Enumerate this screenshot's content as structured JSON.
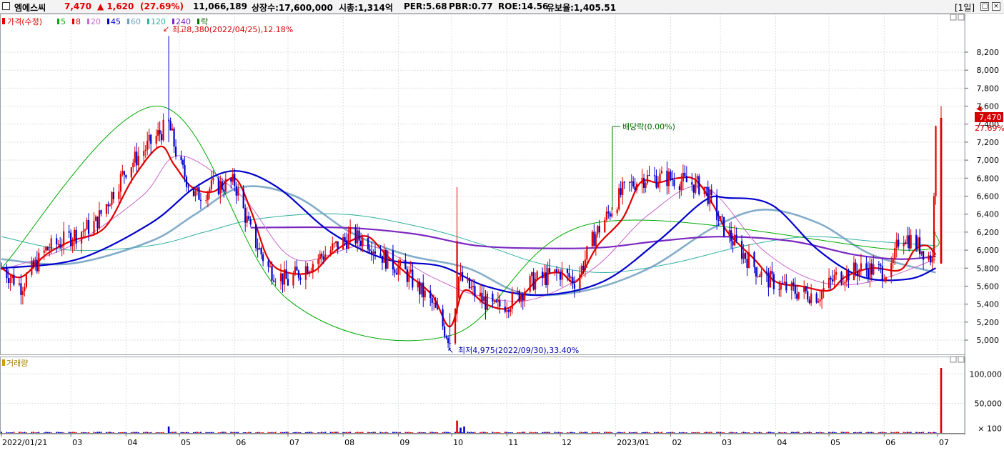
{
  "header": {
    "name": "엠에스씨",
    "price": "7,470",
    "change": "▲ 1,620",
    "change_pct": "(27.69%)",
    "volume": "11,066,189",
    "shares": "상장수:17,600,000",
    "market_cap": "시총:1,314억",
    "per": "PER:5.68",
    "pbr": "PBR:0.77",
    "roe": "ROE:14.56",
    "float_ratio": "유보율:1,405.51",
    "period": "[1일]",
    "colors": {
      "up": "#e00000",
      "down": "#0000cc",
      "text": "#000000"
    }
  },
  "legend": {
    "price_label": "가격(수정)",
    "ma": [
      {
        "label": "5",
        "color": "#00aa00"
      },
      {
        "label": "8",
        "color": "#e00000"
      },
      {
        "label": "20",
        "color": "#cc66cc"
      },
      {
        "label": "45",
        "color": "#0000cc"
      },
      {
        "label": "60",
        "color": "#6f9fc0"
      },
      {
        "label": "120",
        "color": "#30b0a0"
      },
      {
        "label": "240",
        "color": "#7a28c0"
      }
    ],
    "ex_label": "락",
    "volume_label": "거래량"
  },
  "annotations": {
    "high": "최고8,380(2022/04/25),12.18%",
    "low": "최저4,975(2022/09/30),33.40%",
    "dividend": "배당락(0.00%)"
  },
  "current_price_tag": {
    "price": "7,470",
    "pct": "27.69%"
  },
  "chart_data": {
    "type": "candlestick",
    "price_axis": {
      "ticks": [
        "8,200",
        "8,000",
        "7,800",
        "7,600",
        "7,400",
        "7,200",
        "7,000",
        "6,800",
        "6,600",
        "6,400",
        "6,200",
        "6,000",
        "5,800",
        "5,600",
        "5,400",
        "5,200",
        "5,000"
      ],
      "ylim": [
        4850,
        8400
      ]
    },
    "volume_axis": {
      "ticks": [
        "100,000",
        "50,000",
        "× 100"
      ],
      "ylim": [
        0,
        110000
      ]
    },
    "x_axis": {
      "labels": [
        "2022/01/21",
        "03",
        "04",
        "05",
        "06",
        "07",
        "08",
        "09",
        "10",
        "11",
        "12",
        "2023/01",
        "02",
        "03",
        "04",
        "05",
        "06",
        "07"
      ]
    },
    "ma_lines": [
      {
        "name": "5",
        "color": "#00aa00",
        "points": [
          [
            "2022/01/21",
            5800
          ],
          [
            "2022/04/20",
            7600
          ],
          [
            "2022/07/01",
            5450
          ],
          [
            "2022/09/30",
            5050
          ],
          [
            "2022/12/20",
            6300
          ],
          [
            "2023/06/12",
            6000
          ],
          [
            "2023/06/30",
            6200
          ]
        ]
      },
      {
        "name": "8",
        "color": "#e00000",
        "points": [
          [
            "2022/01/21",
            5800
          ],
          [
            "2022/02/01",
            5700
          ],
          [
            "2022/02/15",
            5950
          ],
          [
            "2022/03/01",
            6100
          ],
          [
            "2022/03/20",
            6250
          ],
          [
            "2022/04/05",
            6800
          ],
          [
            "2022/04/20",
            7150
          ],
          [
            "2022/04/28",
            6950
          ],
          [
            "2022/05/08",
            6700
          ],
          [
            "2022/05/20",
            6650
          ],
          [
            "2022/06/01",
            6800
          ],
          [
            "2022/06/10",
            6450
          ],
          [
            "2022/06/20",
            5900
          ],
          [
            "2022/07/01",
            5750
          ],
          [
            "2022/07/15",
            5760
          ],
          [
            "2022/07/25",
            5950
          ],
          [
            "2022/08/05",
            6100
          ],
          [
            "2022/08/15",
            6150
          ],
          [
            "2022/08/25",
            5950
          ],
          [
            "2022/09/05",
            5750
          ],
          [
            "2022/09/20",
            5500
          ],
          [
            "2022/09/30",
            5150
          ],
          [
            "2022/10/08",
            5550
          ],
          [
            "2022/10/20",
            5400
          ],
          [
            "2022/11/01",
            5350
          ],
          [
            "2022/11/10",
            5500
          ],
          [
            "2022/11/20",
            5700
          ],
          [
            "2022/12/01",
            5750
          ],
          [
            "2022/12/10",
            5650
          ],
          [
            "2022/12/22",
            6050
          ],
          [
            "2023/01/05",
            6350
          ],
          [
            "2023/01/15",
            6750
          ],
          [
            "2023/01/25",
            6750
          ],
          [
            "2023/02/05",
            6800
          ],
          [
            "2023/02/15",
            6780
          ],
          [
            "2023/02/25",
            6500
          ],
          [
            "2023/03/05",
            6200
          ],
          [
            "2023/03/20",
            5900
          ],
          [
            "2023/04/01",
            5650
          ],
          [
            "2023/04/15",
            5600
          ],
          [
            "2023/05/01",
            5550
          ],
          [
            "2023/05/10",
            5700
          ],
          [
            "2023/05/25",
            5800
          ],
          [
            "2023/06/10",
            5780
          ],
          [
            "2023/06/18",
            6000
          ],
          [
            "2023/06/25",
            6050
          ],
          [
            "2023/06/30",
            5950
          ]
        ]
      },
      {
        "name": "20",
        "color": "#cc66cc",
        "points": [
          [
            "2022/01/21",
            5780
          ],
          [
            "2022/03/01",
            6050
          ],
          [
            "2022/04/10",
            6600
          ],
          [
            "2022/05/01",
            7050
          ],
          [
            "2022/06/05",
            6600
          ],
          [
            "2022/07/05",
            5900
          ],
          [
            "2022/08/15",
            6050
          ],
          [
            "2022/09/20",
            5700
          ],
          [
            "2022/10/15",
            5500
          ],
          [
            "2022/11/15",
            5450
          ],
          [
            "2022/12/20",
            5800
          ],
          [
            "2023/01/20",
            6400
          ],
          [
            "2023/02/20",
            6700
          ],
          [
            "2023/03/25",
            6000
          ],
          [
            "2023/04/25",
            5650
          ],
          [
            "2023/05/25",
            5650
          ],
          [
            "2023/06/30",
            5900
          ]
        ]
      },
      {
        "name": "45",
        "color": "#0000cc",
        "points": [
          [
            "2022/01/21",
            5800
          ],
          [
            "2022/03/05",
            5900
          ],
          [
            "2022/04/15",
            6300
          ],
          [
            "2022/05/10",
            6700
          ],
          [
            "2022/06/01",
            6880
          ],
          [
            "2022/06/25",
            6700
          ],
          [
            "2022/07/25",
            6200
          ],
          [
            "2022/08/25",
            5900
          ],
          [
            "2022/09/25",
            5820
          ],
          [
            "2022/10/20",
            5600
          ],
          [
            "2022/11/20",
            5500
          ],
          [
            "2022/12/25",
            5650
          ],
          [
            "2023/01/25",
            6100
          ],
          [
            "2023/02/20",
            6550
          ],
          [
            "2023/03/05",
            6580
          ],
          [
            "2023/03/30",
            6500
          ],
          [
            "2023/04/25",
            6000
          ],
          [
            "2023/05/20",
            5700
          ],
          [
            "2023/06/15",
            5680
          ],
          [
            "2023/06/30",
            5800
          ]
        ]
      },
      {
        "name": "60",
        "color": "#6f9fc0",
        "points": [
          [
            "2022/01/21",
            5900
          ],
          [
            "2022/03/01",
            5850
          ],
          [
            "2022/04/15",
            6100
          ],
          [
            "2022/05/10",
            6400
          ],
          [
            "2022/06/05",
            6700
          ],
          [
            "2022/07/05",
            6600
          ],
          [
            "2022/08/05",
            6200
          ],
          [
            "2022/09/05",
            5950
          ],
          [
            "2022/10/10",
            5800
          ],
          [
            "2022/11/10",
            5520
          ],
          [
            "2022/12/15",
            5550
          ],
          [
            "2023/01/20",
            5800
          ],
          [
            "2023/02/25",
            6250
          ],
          [
            "2023/03/25",
            6450
          ],
          [
            "2023/04/25",
            6300
          ],
          [
            "2023/05/25",
            5950
          ],
          [
            "2023/06/30",
            5750
          ]
        ]
      },
      {
        "name": "120",
        "color": "#30b0a0",
        "points": [
          [
            "2022/01/21",
            6150
          ],
          [
            "2022/03/01",
            6000
          ],
          [
            "2022/04/15",
            6050
          ],
          [
            "2022/05/15",
            6200
          ],
          [
            "2022/06/15",
            6350
          ],
          [
            "2022/08/01",
            6400
          ],
          [
            "2022/09/15",
            6250
          ],
          [
            "2022/10/20",
            6050
          ],
          [
            "2022/11/20",
            5850
          ],
          [
            "2022/12/25",
            5750
          ],
          [
            "2023/02/01",
            5850
          ],
          [
            "2023/03/15",
            6050
          ],
          [
            "2023/04/20",
            6150
          ],
          [
            "2023/05/25",
            6100
          ],
          [
            "2023/06/30",
            6050
          ]
        ]
      },
      {
        "name": "240",
        "color": "#7a28c0",
        "points": [
          [
            "2022/06/10",
            6250
          ],
          [
            "2022/08/01",
            6250
          ],
          [
            "2022/09/10",
            6180
          ],
          [
            "2022/10/15",
            6050
          ],
          [
            "2022/11/20",
            6020
          ],
          [
            "2022/12/25",
            6030
          ],
          [
            "2023/01/25",
            6100
          ],
          [
            "2023/03/01",
            6150
          ],
          [
            "2023/04/10",
            6100
          ],
          [
            "2023/05/15",
            5950
          ],
          [
            "2023/06/10",
            5900
          ],
          [
            "2023/06/30",
            5930
          ]
        ]
      }
    ],
    "candle_trend": [
      [
        "2022/01/21",
        5800
      ],
      [
        "2022/02/01",
        5600
      ],
      [
        "2022/02/15",
        6000
      ],
      [
        "2022/03/01",
        6150
      ],
      [
        "2022/03/15",
        6300
      ],
      [
        "2022/04/01",
        6900
      ],
      [
        "2022/04/20",
        7300
      ],
      [
        "2022/04/25",
        7400
      ],
      [
        "2022/05/01",
        6950
      ],
      [
        "2022/05/10",
        6600
      ],
      [
        "2022/05/20",
        6700
      ],
      [
        "2022/06/01",
        6750
      ],
      [
        "2022/06/10",
        6200
      ],
      [
        "2022/06/20",
        5800
      ],
      [
        "2022/07/01",
        5650
      ],
      [
        "2022/07/10",
        5800
      ],
      [
        "2022/07/25",
        6000
      ],
      [
        "2022/08/05",
        6150
      ],
      [
        "2022/08/15",
        6100
      ],
      [
        "2022/08/25",
        5900
      ],
      [
        "2022/09/05",
        5750
      ],
      [
        "2022/09/20",
        5400
      ],
      [
        "2022/09/30",
        5000
      ],
      [
        "2022/10/05",
        5700
      ],
      [
        "2022/10/15",
        5500
      ],
      [
        "2022/10/25",
        5350
      ],
      [
        "2022/11/05",
        5450
      ],
      [
        "2022/11/15",
        5650
      ],
      [
        "2022/12/01",
        5750
      ],
      [
        "2022/12/10",
        5650
      ],
      [
        "2022/12/20",
        6150
      ],
      [
        "2023/01/05",
        6650
      ],
      [
        "2023/01/15",
        6800
      ],
      [
        "2023/02/01",
        6800
      ],
      [
        "2023/02/20",
        6700
      ],
      [
        "2023/03/01",
        6300
      ],
      [
        "2023/03/10",
        6050
      ],
      [
        "2023/03/25",
        5700
      ],
      [
        "2023/04/10",
        5550
      ],
      [
        "2023/04/25",
        5500
      ],
      [
        "2023/05/05",
        5700
      ],
      [
        "2023/05/20",
        5800
      ],
      [
        "2023/06/05",
        5750
      ],
      [
        "2023/06/10",
        6200
      ],
      [
        "2023/06/20",
        6050
      ],
      [
        "2023/06/28",
        5900
      ],
      [
        "2023/06/30",
        7470
      ]
    ],
    "last_candle": {
      "date": "2023/07/03",
      "open": 5850,
      "high": 7600,
      "low": 5850,
      "close": 7470
    },
    "volume_spikes": [
      [
        "2022/04/25",
        11000
      ],
      [
        "2022/10/04",
        21000
      ],
      [
        "2022/10/06",
        9000
      ],
      [
        "2022/10/08",
        11000
      ],
      [
        "2023/07/03",
        110000
      ]
    ],
    "volume_base": 1500
  }
}
